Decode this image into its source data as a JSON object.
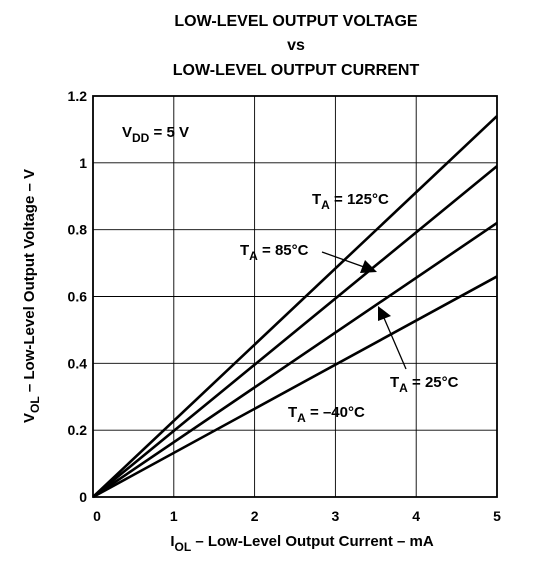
{
  "chart_data": {
    "type": "line",
    "title": [
      "LOW-LEVEL OUTPUT VOLTAGE",
      "vs",
      "LOW-LEVEL OUTPUT CURRENT"
    ],
    "xlabel": {
      "main": "I",
      "sub": "OL",
      "rest": " – Low-Level Output Current – mA"
    },
    "ylabel": {
      "main": "V",
      "sub": "OL",
      "rest": " – Low-Level Output Voltage – V"
    },
    "xlim": [
      0,
      5
    ],
    "ylim": [
      0,
      1.2
    ],
    "xticks": [
      "0",
      "1",
      "2",
      "3",
      "4",
      "5"
    ],
    "yticks": [
      "0",
      "0.2",
      "0.4",
      "0.6",
      "0.8",
      "1",
      "1.2"
    ],
    "grid": true,
    "colors": {
      "line": "#000000",
      "grid": "#000000"
    },
    "annotation_condition": {
      "main": "V",
      "sub": "DD",
      "rest": " = 5 V"
    },
    "series": [
      {
        "name": "125°C",
        "label_main": "T",
        "label_sub": "A",
        "label_rest": " = 125°C",
        "x": [
          0,
          5
        ],
        "y": [
          0,
          1.14
        ]
      },
      {
        "name": "85°C",
        "label_main": "T",
        "label_sub": "A",
        "label_rest": " = 85°C",
        "x": [
          0,
          5
        ],
        "y": [
          0,
          0.99
        ]
      },
      {
        "name": "25°C",
        "label_main": "T",
        "label_sub": "A",
        "label_rest": " = 25°C",
        "x": [
          0,
          5
        ],
        "y": [
          0,
          0.82
        ]
      },
      {
        "name": "–40°C",
        "label_main": "T",
        "label_sub": "A",
        "label_rest": " = –40°C",
        "x": [
          0,
          5
        ],
        "y": [
          0,
          0.66
        ]
      }
    ]
  }
}
